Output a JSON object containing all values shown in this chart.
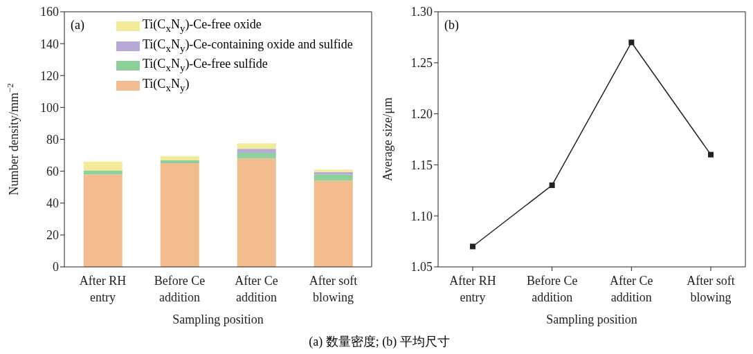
{
  "chart_data": [
    {
      "type": "bar",
      "stacked": true,
      "xlabel": "Sampling position",
      "ylabel": "Number density/mm$^{−2}$",
      "categories": [
        "After RH entry",
        "Before Ce addition",
        "After Ce addition",
        "After soft blowing"
      ],
      "ylim": [
        0,
        160
      ],
      "yticks": [
        0,
        20,
        40,
        60,
        80,
        100,
        120,
        140,
        160
      ],
      "grid": false,
      "legend": "top",
      "annotations": [
        "(a)",
        "(a) 数量密度; (b) 平均尺寸"
      ],
      "series": [
        {
          "name": "Ti(C$_{x}$N$_{y}$)",
          "color": "#f2bc8f",
          "values": [
            58,
            65,
            68,
            54
          ]
        },
        {
          "name": "Ti(C$_{x}$N$_{y}$)-Ce-free sulfide",
          "color": "#8fcf9a",
          "values": [
            2.5,
            2,
            3.5,
            4
          ]
        },
        {
          "name": "Ti(C$_{x}$N$_{y}$)-Ce-containing oxide and sulfide",
          "color": "#b8a8d8",
          "values": [
            0,
            0,
            2.5,
            1.5
          ]
        },
        {
          "name": "Ti(C$_{x}$N$_{y}$)-Ce-free oxide",
          "color": "#f2eb9a",
          "values": [
            5.5,
            2.5,
            3.5,
            1.5
          ]
        }
      ]
    },
    {
      "type": "line",
      "xlabel": "Sampling position",
      "ylabel": "Average size/μm",
      "categories": [
        "After RH entry",
        "Before Ce addition",
        "After Ce addition",
        "After soft blowing"
      ],
      "ylim": [
        1.05,
        1.3
      ],
      "yticks": [
        {
          "value": 1.05,
          "label": "1.05"
        },
        {
          "value": 1.1,
          "label": "1.10"
        },
        {
          "value": 1.15,
          "label": "1.15"
        },
        {
          "value": 1.2,
          "label": "1.20"
        },
        {
          "value": 1.25,
          "label": "1.25"
        },
        {
          "value": 1.3,
          "label": "1.30"
        }
      ],
      "grid": false,
      "marker": "square",
      "line_style": "solid",
      "annotations": [
        "(b)"
      ],
      "series": [
        {
          "color": "#222222",
          "values": [
            1.07,
            1.13,
            1.27,
            1.16
          ]
        }
      ]
    }
  ]
}
